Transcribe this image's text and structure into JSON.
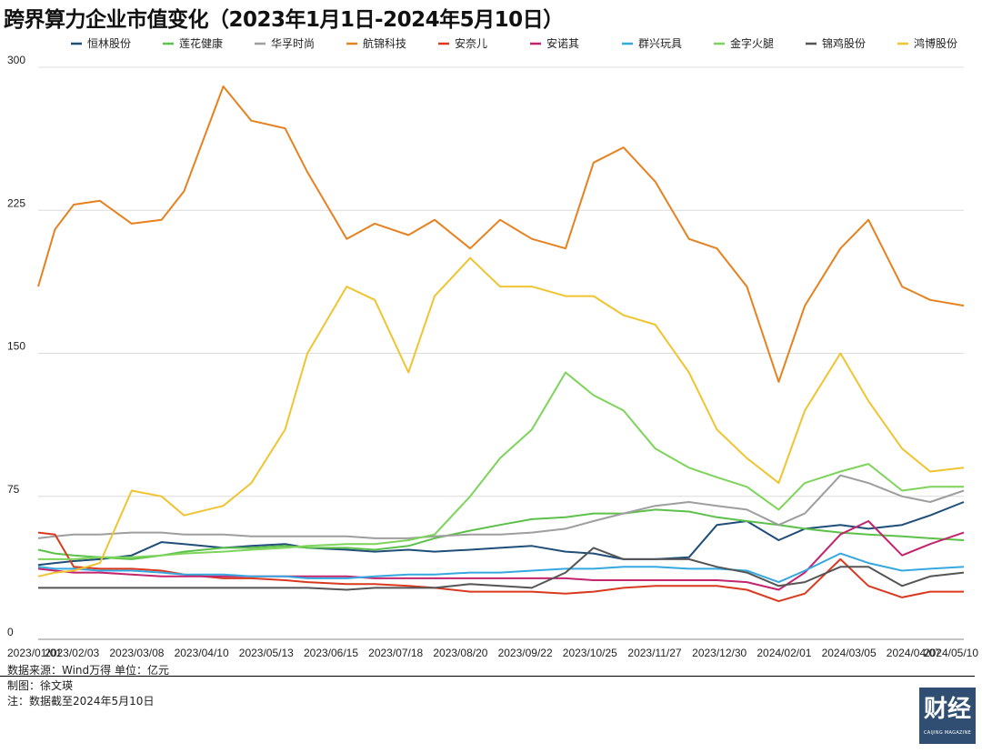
{
  "title": "跨界算力企业市值变化（2023年1月1日-2024年5月10日）",
  "notes": {
    "source": "数据来源：Wind万得 单位：亿元",
    "maker": "制图：徐文瑛",
    "note": "注：数据截至2024年5月10日"
  },
  "logo": {
    "cn": "财经",
    "en": "CAIJING MAGAZINE"
  },
  "chart_data": {
    "type": "line",
    "title": "跨界算力企业市值变化（2023年1月1日-2024年5月10日）",
    "xlabel": "",
    "ylabel": "",
    "unit": "亿元",
    "ylim": [
      0,
      300
    ],
    "yticks": [
      0,
      75,
      150,
      225,
      300
    ],
    "grid": true,
    "legend_position": "top",
    "x_ticks": [
      "2023/01/01",
      "2023/02/03",
      "2023/03/08",
      "2023/04/10",
      "2023/05/13",
      "2023/06/15",
      "2023/07/18",
      "2023/08/20",
      "2023/09/22",
      "2023/10/25",
      "2023/11/27",
      "2023/12/30",
      "2024/02/01",
      "2024/03/05",
      "2024/04/07",
      "2024/05/10"
    ],
    "x": [
      "2023/01/01",
      "2023/01/10",
      "2023/01/20",
      "2023/02/03",
      "2023/02/20",
      "2023/03/08",
      "2023/03/20",
      "2023/04/10",
      "2023/04/25",
      "2023/05/13",
      "2023/05/25",
      "2023/06/15",
      "2023/06/30",
      "2023/07/18",
      "2023/08/01",
      "2023/08/20",
      "2023/09/05",
      "2023/09/22",
      "2023/10/10",
      "2023/10/25",
      "2023/11/10",
      "2023/11/27",
      "2023/12/15",
      "2023/12/30",
      "2024/01/15",
      "2024/02/01",
      "2024/02/15",
      "2024/03/05",
      "2024/03/20",
      "2024/04/07",
      "2024/04/22",
      "2024/05/10"
    ],
    "series": [
      {
        "name": "恒林股份",
        "color": "#1f4e79",
        "values": [
          39,
          40,
          41,
          42,
          44,
          51,
          50,
          48,
          49,
          50,
          48,
          47,
          46,
          47,
          46,
          47,
          48,
          49,
          46,
          45,
          42,
          42,
          43,
          60,
          62,
          52,
          58,
          60,
          58,
          60,
          65,
          72
        ]
      },
      {
        "name": "莲花健康",
        "color": "#5cc14a",
        "values": [
          47,
          45,
          44,
          43,
          42,
          44,
          46,
          48,
          48,
          49,
          48,
          48,
          47,
          49,
          53,
          57,
          60,
          63,
          64,
          66,
          66,
          68,
          67,
          64,
          62,
          60,
          58,
          56,
          55,
          54,
          53,
          52
        ]
      },
      {
        "name": "华孚时尚",
        "color": "#9e9e9e",
        "values": [
          53,
          54,
          55,
          55,
          56,
          56,
          55,
          55,
          54,
          54,
          54,
          54,
          53,
          53,
          54,
          55,
          55,
          56,
          58,
          62,
          66,
          70,
          72,
          70,
          68,
          60,
          66,
          86,
          82,
          75,
          72,
          78
        ]
      },
      {
        "name": "航锦科技",
        "color": "#e6811f",
        "values": [
          185,
          215,
          228,
          230,
          218,
          220,
          235,
          290,
          272,
          268,
          245,
          210,
          218,
          212,
          220,
          205,
          220,
          210,
          205,
          250,
          258,
          240,
          210,
          205,
          185,
          135,
          175,
          205,
          220,
          185,
          178,
          175
        ]
      },
      {
        "name": "安奈儿",
        "color": "#d93a1f",
        "values": [
          56,
          55,
          38,
          37,
          37,
          36,
          34,
          32,
          32,
          31,
          30,
          29,
          29,
          28,
          27,
          25,
          25,
          25,
          24,
          25,
          27,
          28,
          28,
          28,
          26,
          20,
          24,
          42,
          28,
          22,
          25,
          25
        ]
      },
      {
        "name": "安诺其",
        "color": "#c2246d",
        "values": [
          37,
          36,
          35,
          35,
          34,
          33,
          33,
          33,
          33,
          33,
          33,
          33,
          32,
          32,
          32,
          32,
          32,
          32,
          32,
          31,
          31,
          31,
          31,
          31,
          30,
          26,
          35,
          55,
          62,
          44,
          50,
          56
        ]
      },
      {
        "name": "群兴玩具",
        "color": "#36a8e0",
        "values": [
          38,
          37,
          37,
          36,
          36,
          35,
          34,
          34,
          33,
          33,
          32,
          32,
          33,
          34,
          34,
          35,
          35,
          36,
          37,
          37,
          38,
          38,
          37,
          37,
          36,
          30,
          36,
          45,
          40,
          36,
          37,
          38
        ]
      },
      {
        "name": "金字火腿",
        "color": "#7dd45a",
        "values": [
          42,
          42,
          42,
          43,
          43,
          44,
          45,
          46,
          47,
          48,
          49,
          50,
          50,
          52,
          55,
          75,
          95,
          110,
          140,
          128,
          120,
          100,
          90,
          85,
          80,
          68,
          82,
          88,
          92,
          78,
          80,
          80
        ]
      },
      {
        "name": "锦鸡股份",
        "color": "#555555",
        "values": [
          27,
          27,
          27,
          27,
          27,
          27,
          27,
          27,
          27,
          27,
          27,
          26,
          27,
          27,
          27,
          29,
          28,
          27,
          35,
          48,
          42,
          42,
          42,
          38,
          35,
          28,
          30,
          38,
          38,
          28,
          33,
          35
        ]
      },
      {
        "name": "鸿博股份",
        "color": "#f0c431",
        "values": [
          33,
          35,
          36,
          40,
          78,
          75,
          65,
          70,
          82,
          110,
          150,
          185,
          178,
          140,
          180,
          200,
          185,
          185,
          180,
          180,
          170,
          165,
          140,
          110,
          95,
          82,
          120,
          150,
          125,
          100,
          88,
          90
        ]
      }
    ]
  }
}
